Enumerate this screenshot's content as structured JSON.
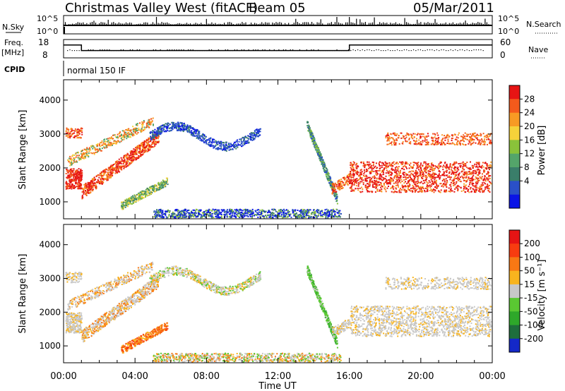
{
  "header": {
    "title": "Christmas Valley West (fitACF)",
    "beam": "Beam 05",
    "date": "05/Mar/2011"
  },
  "status_panels": {
    "nsky_label": "N.Sky",
    "nsearch_label": "N.Search",
    "nsky_ticks": [
      "10^5",
      "10^0"
    ],
    "nsearch_ticks": [
      "10^5",
      "10^0"
    ],
    "freq_label_1": "Freq.",
    "freq_label_2": "[MHz]",
    "freq_ticks": [
      "18",
      "8"
    ],
    "nave_label": "Nave",
    "nave_ticks": [
      "60",
      "0"
    ],
    "cpid_label": "CPID",
    "cpid_value": "normal 150 IF"
  },
  "chart_data": [
    {
      "type": "heatmap",
      "name": "power",
      "ylabel": "Slant Range [km]",
      "yticks": [
        "1000",
        "2000",
        "3000",
        "4000"
      ],
      "ylim": [
        500,
        4600
      ],
      "colorbar_label": "Power [dB]",
      "colorbar_ticks": [
        "28",
        "24",
        "20",
        "16",
        "12",
        "8",
        "4"
      ],
      "colors": [
        "#0a14e6",
        "#2a50c8",
        "#3a7e6a",
        "#54a56a",
        "#8ac23a",
        "#f6d23a",
        "#f89a24",
        "#f45a1c",
        "#e61414"
      ]
    },
    {
      "type": "heatmap",
      "name": "velocity",
      "ylabel": "Slant Range [km]",
      "yticks": [
        "1000",
        "2000",
        "3000",
        "4000"
      ],
      "ylim": [
        500,
        4600
      ],
      "colorbar_label": "Velocity [m s⁻¹]",
      "colorbar_ticks": [
        "200",
        "100",
        "50",
        "15",
        "-15",
        "-50",
        "-100",
        "-200"
      ],
      "colors": [
        "#1428c8",
        "#1e6e3c",
        "#2ea82a",
        "#5ac832",
        "#c8c8c8",
        "#f8b41e",
        "#f87814",
        "#f83c10",
        "#e61414"
      ],
      "xlabel": "Time UT",
      "xticks": [
        "00:00",
        "04:00",
        "08:00",
        "12:00",
        "16:00",
        "20:00",
        "00:00"
      ],
      "xlim": [
        0,
        24
      ]
    }
  ],
  "freq_profile": {
    "times": [
      0,
      1,
      1,
      16,
      16,
      24
    ],
    "freq_mhz": [
      15,
      15,
      12,
      12,
      15,
      15
    ]
  }
}
